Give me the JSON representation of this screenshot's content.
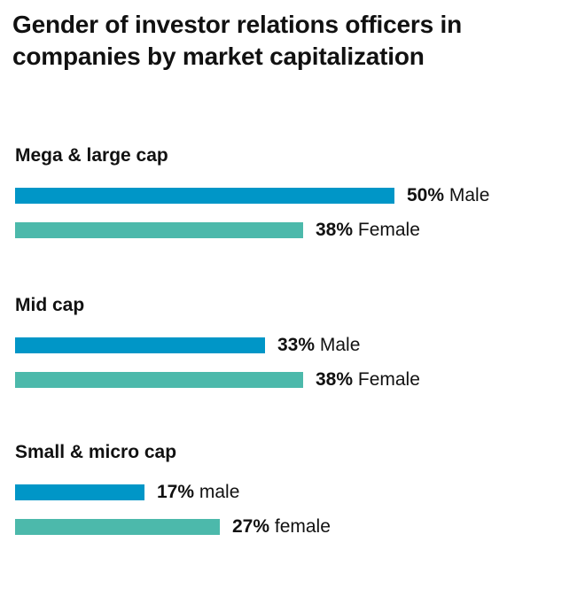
{
  "chart_data": {
    "type": "bar",
    "orientation": "horizontal",
    "title": "Gender of investor relations officers in companies by market capitalization",
    "groups": [
      {
        "label": "Mega & large cap",
        "bars": [
          {
            "value": 50,
            "pct_text": "50%",
            "label": "Male",
            "color": "#0096c7"
          },
          {
            "value": 38,
            "pct_text": "38%",
            "label": "Female",
            "color": "#4cb9ab"
          }
        ]
      },
      {
        "label": "Mid cap",
        "bars": [
          {
            "value": 33,
            "pct_text": "33%",
            "label": "Male",
            "color": "#0096c7"
          },
          {
            "value": 38,
            "pct_text": "38%",
            "label": "Female",
            "color": "#4cb9ab"
          }
        ]
      },
      {
        "label": "Small & micro cap",
        "bars": [
          {
            "value": 17,
            "pct_text": "17%",
            "label": "male",
            "color": "#0096c7"
          },
          {
            "value": 27,
            "pct_text": "27%",
            "label": "female",
            "color": "#4cb9ab"
          }
        ]
      }
    ],
    "xlim": [
      0,
      50
    ]
  }
}
